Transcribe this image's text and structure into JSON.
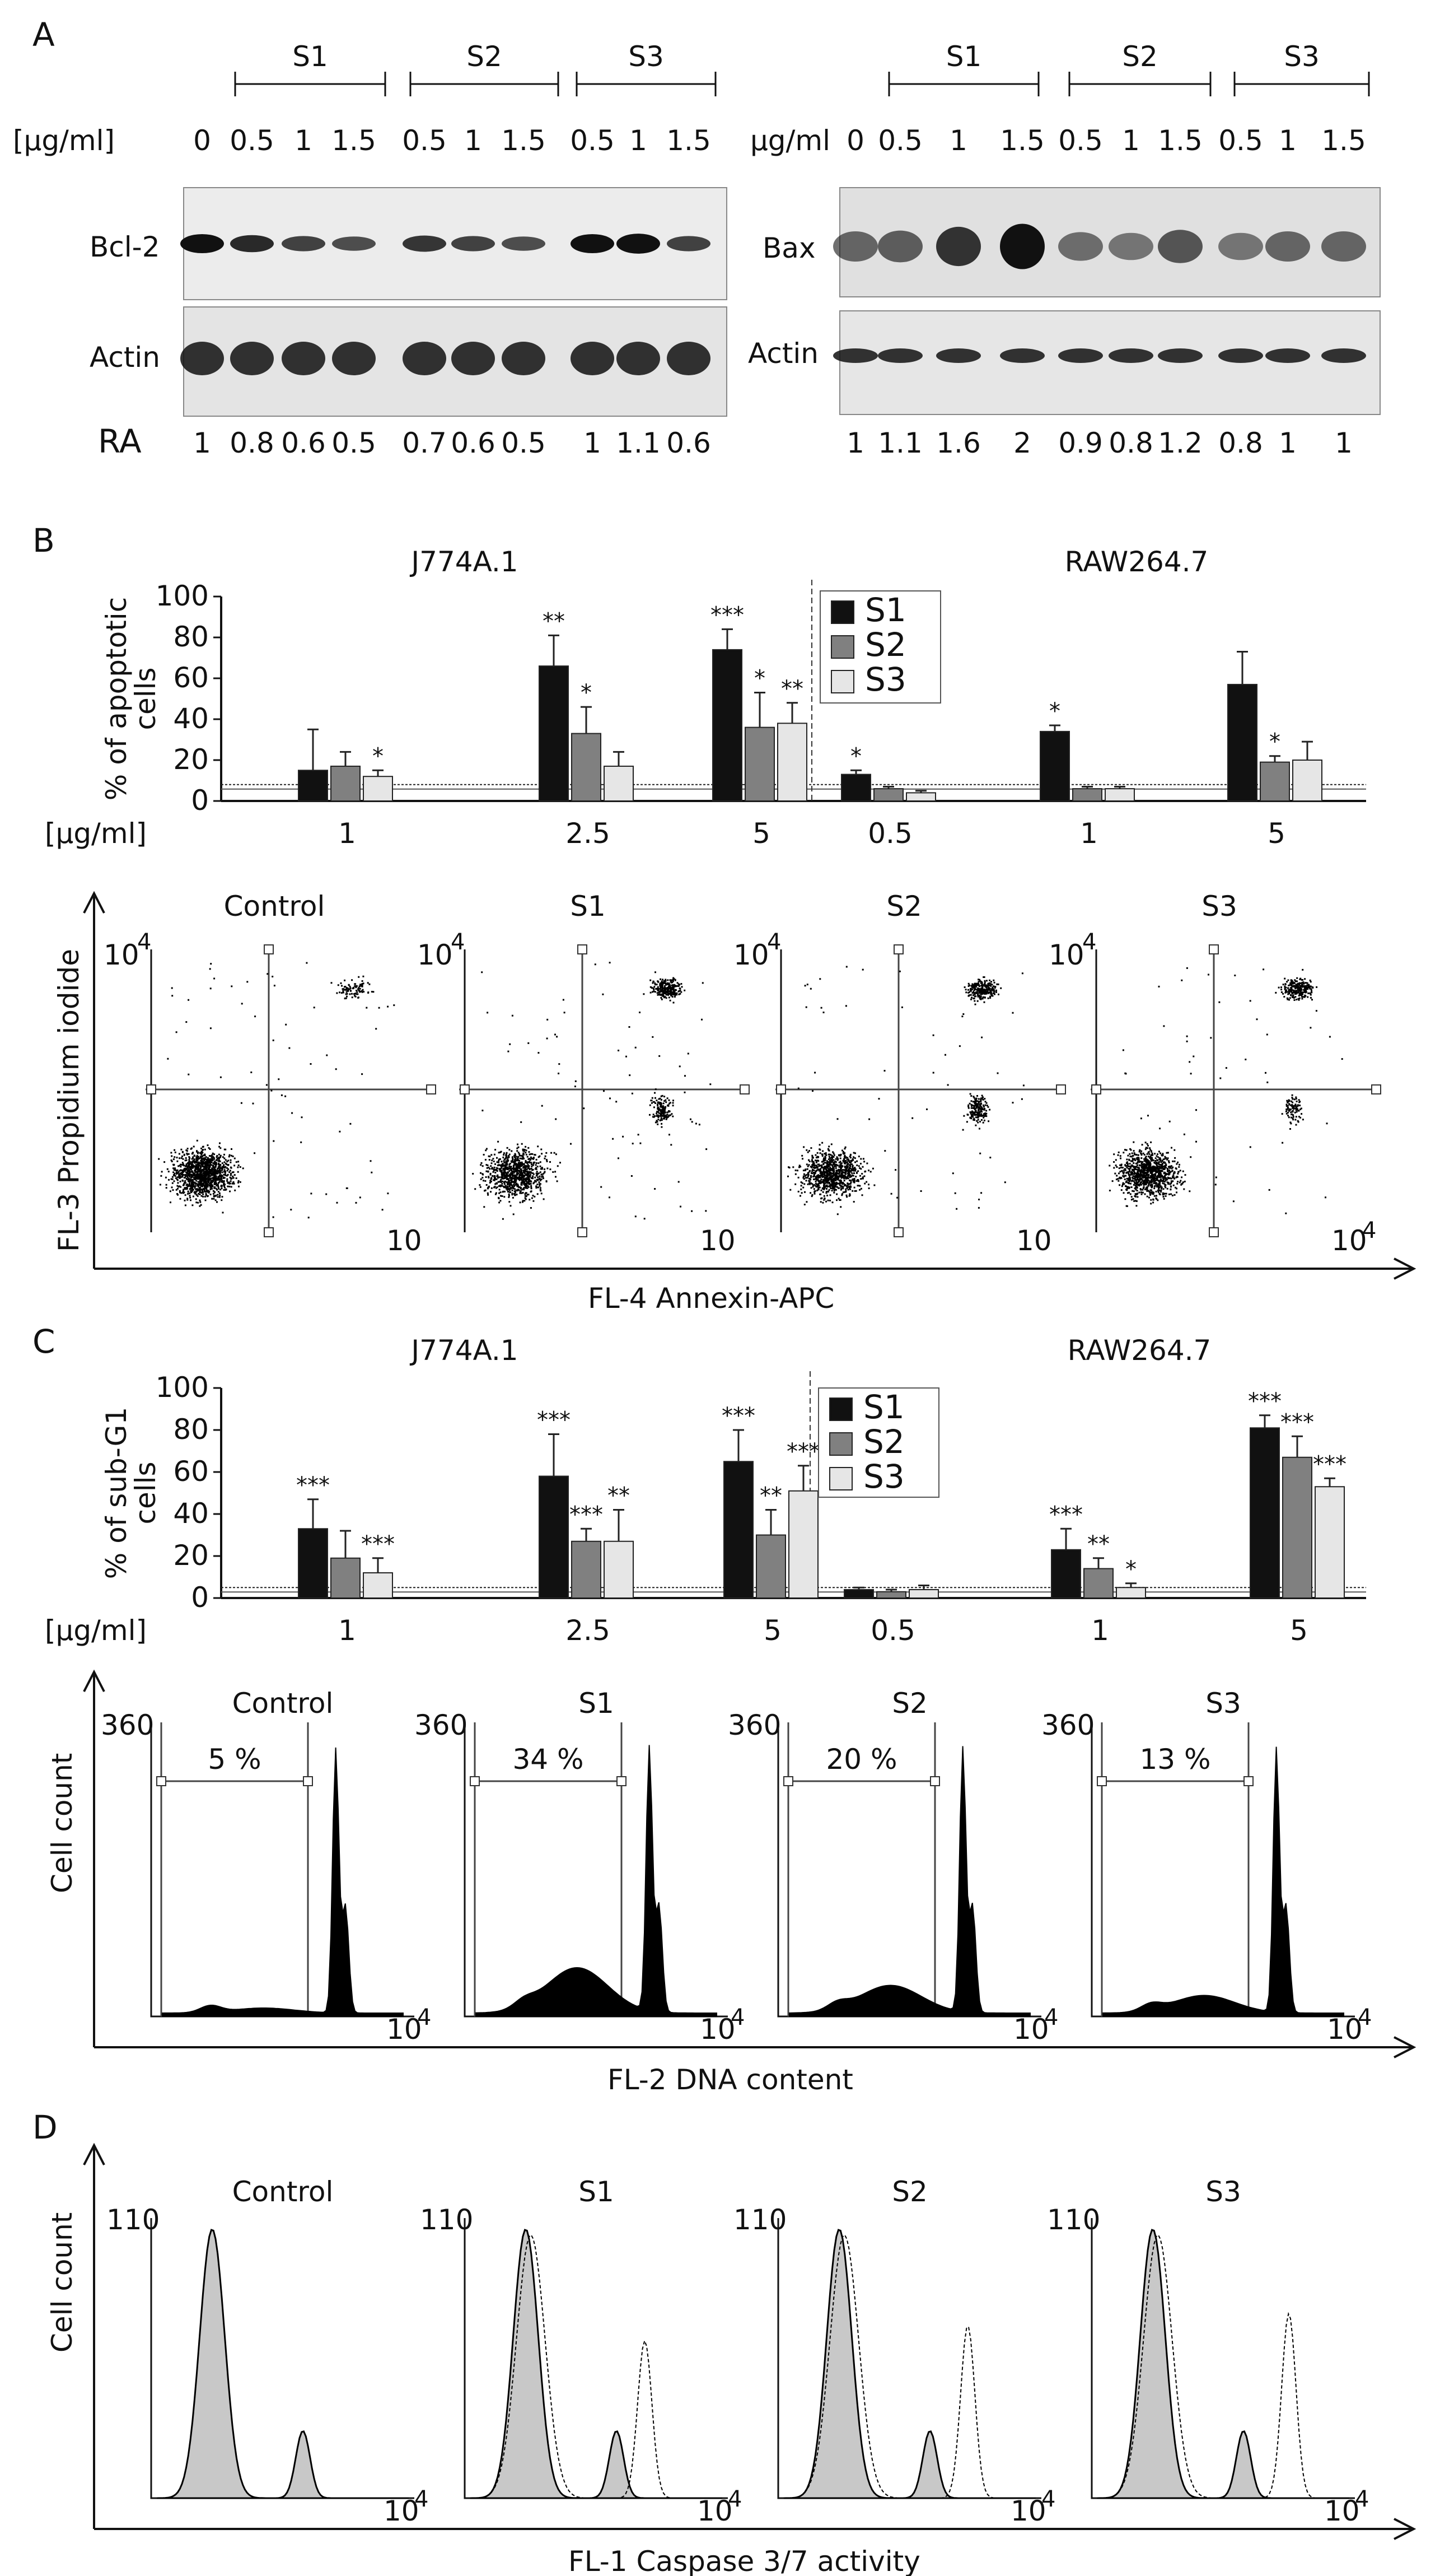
{
  "panels": {
    "a": "A",
    "b": "B",
    "c": "C",
    "d": "D"
  },
  "colors": {
    "s1": "#111111",
    "s2": "#808080",
    "s3": "#e6e6e6",
    "blot_bg": "#e8e8e8",
    "blot_left": "#ececec"
  },
  "panel_a": {
    "left": {
      "groups": [
        "S1",
        "S2",
        "S3"
      ],
      "conc_label": "[µg/ml]",
      "conc": [
        "0",
        "0.5",
        "1",
        "1.5",
        "0.5",
        "1",
        "1.5",
        "0.5",
        "1",
        "1.5"
      ],
      "row1": "Bcl-2",
      "row2": "Actin",
      "ra_label": "RA",
      "ra": [
        "1",
        "0.8",
        "0.6",
        "0.5",
        "0.7",
        "0.6",
        "0.5",
        "1",
        "1.1",
        "0.6"
      ]
    },
    "right": {
      "groups": [
        "S1",
        "S2",
        "S3"
      ],
      "conc_label": "µg/ml",
      "conc": [
        "0",
        "0.5",
        "1",
        "1.5",
        "0.5",
        "1",
        "1.5",
        "0.5",
        "1",
        "1.5"
      ],
      "row1": "Bax",
      "row2": "Actin",
      "ra": [
        "1",
        "1.1",
        "1.6",
        "2",
        "0.9",
        "0.8",
        "1.2",
        "0.8",
        "1",
        "1"
      ]
    }
  },
  "chart_data": [
    {
      "type": "bar",
      "panel": "B",
      "ylabel": "% of apoptotic cells",
      "ylim": [
        0,
        100
      ],
      "yticks": [
        "0",
        "20",
        "40",
        "60",
        "80",
        "100"
      ],
      "xlabel": "[µg/ml]",
      "legend": [
        "S1",
        "S2",
        "S3"
      ],
      "groups": [
        {
          "title": "J774A.1",
          "categories": [
            "1",
            "2.5",
            "5"
          ],
          "series": [
            {
              "name": "S1",
              "values": [
                15,
                66,
                74
              ],
              "errors": [
                20,
                15,
                10
              ],
              "stars": [
                "",
                "**",
                "***"
              ]
            },
            {
              "name": "S2",
              "values": [
                17,
                33,
                36
              ],
              "errors": [
                7,
                13,
                17
              ],
              "stars": [
                "",
                "*",
                "*"
              ]
            },
            {
              "name": "S3",
              "values": [
                12,
                17,
                38
              ],
              "errors": [
                3,
                7,
                10
              ],
              "stars": [
                "*",
                "",
                "**"
              ]
            }
          ]
        },
        {
          "title": "RAW264.7",
          "categories": [
            "0.5",
            "1",
            "5"
          ],
          "series": [
            {
              "name": "S1",
              "values": [
                13,
                34,
                57
              ],
              "errors": [
                2,
                3,
                16
              ],
              "stars": [
                "*",
                "*",
                ""
              ]
            },
            {
              "name": "S2",
              "values": [
                6,
                6,
                19
              ],
              "errors": [
                1,
                1,
                3
              ],
              "stars": [
                "",
                "",
                "*"
              ]
            },
            {
              "name": "S3",
              "values": [
                4,
                6,
                20
              ],
              "errors": [
                1,
                1,
                9
              ],
              "stars": [
                "",
                "",
                ""
              ]
            }
          ]
        }
      ],
      "reference_line": 8
    },
    {
      "type": "bar",
      "panel": "C",
      "ylabel": "% of sub-G1 cells",
      "ylim": [
        0,
        100
      ],
      "yticks": [
        "0",
        "20",
        "40",
        "60",
        "80",
        "100"
      ],
      "xlabel": "[µg/ml]",
      "legend": [
        "S1",
        "S2",
        "S3"
      ],
      "groups": [
        {
          "title": "J774A.1",
          "categories": [
            "1",
            "2.5",
            "5"
          ],
          "series": [
            {
              "name": "S1",
              "values": [
                33,
                58,
                65
              ],
              "errors": [
                14,
                20,
                15
              ],
              "stars": [
                "***",
                "***",
                "***"
              ]
            },
            {
              "name": "S2",
              "values": [
                19,
                27,
                30
              ],
              "errors": [
                13,
                6,
                12
              ],
              "stars": [
                "",
                "***",
                "**"
              ]
            },
            {
              "name": "S3",
              "values": [
                12,
                27,
                51
              ],
              "errors": [
                7,
                15,
                12
              ],
              "stars": [
                "***",
                "**",
                "***"
              ]
            }
          ]
        },
        {
          "title": "RAW264.7",
          "categories": [
            "0.5",
            "1",
            "5"
          ],
          "series": [
            {
              "name": "S1",
              "values": [
                4,
                23,
                81
              ],
              "errors": [
                1,
                10,
                6
              ],
              "stars": [
                "",
                "***",
                "***"
              ]
            },
            {
              "name": "S2",
              "values": [
                3,
                14,
                67
              ],
              "errors": [
                1,
                5,
                10
              ],
              "stars": [
                "",
                "**",
                "***"
              ]
            },
            {
              "name": "S3",
              "values": [
                4,
                5,
                53
              ],
              "errors": [
                2,
                2,
                4
              ],
              "stars": [
                "",
                "*",
                "***"
              ]
            }
          ]
        }
      ],
      "reference_line": 5
    }
  ],
  "flow_b": {
    "titles": [
      "Control",
      "S1",
      "S2",
      "S3"
    ],
    "ylabel": "FL-3 Propidium iodide",
    "xlabel": "FL-4 Annexin-APC",
    "ymax": "10",
    "ymax_exp": "4",
    "xmax": [
      "10",
      "10",
      "10",
      "10"
    ],
    "xmax_exp": [
      "",
      "",
      "",
      "4"
    ],
    "dots": [
      {
        "main": 0.88,
        "upper": 0.07,
        "lower": 0.0
      },
      {
        "main": 0.62,
        "upper": 0.2,
        "lower": 0.12
      },
      {
        "main": 0.66,
        "upper": 0.18,
        "lower": 0.12
      },
      {
        "main": 0.72,
        "upper": 0.17,
        "lower": 0.07
      }
    ]
  },
  "flow_c": {
    "titles": [
      "Control",
      "S1",
      "S2",
      "S3"
    ],
    "ylabel": "Cell count",
    "xlabel": "FL-2 DNA content",
    "ymax": "360",
    "xmax": "10",
    "xmax_exp": "4",
    "percent": [
      "5 %",
      "34 %",
      "20 %",
      "13 %"
    ],
    "subg1": [
      0.1,
      0.9,
      0.55,
      0.35
    ]
  },
  "flow_d": {
    "titles": [
      "Control",
      "S1",
      "S2",
      "S3"
    ],
    "ylabel": "Cell count",
    "xlabel": "FL-1 Caspase 3/7 activity",
    "ymax": "110",
    "xmax": "10",
    "xmax_exp": "4",
    "shift": [
      0,
      0.45,
      0.6,
      0.72
    ]
  }
}
